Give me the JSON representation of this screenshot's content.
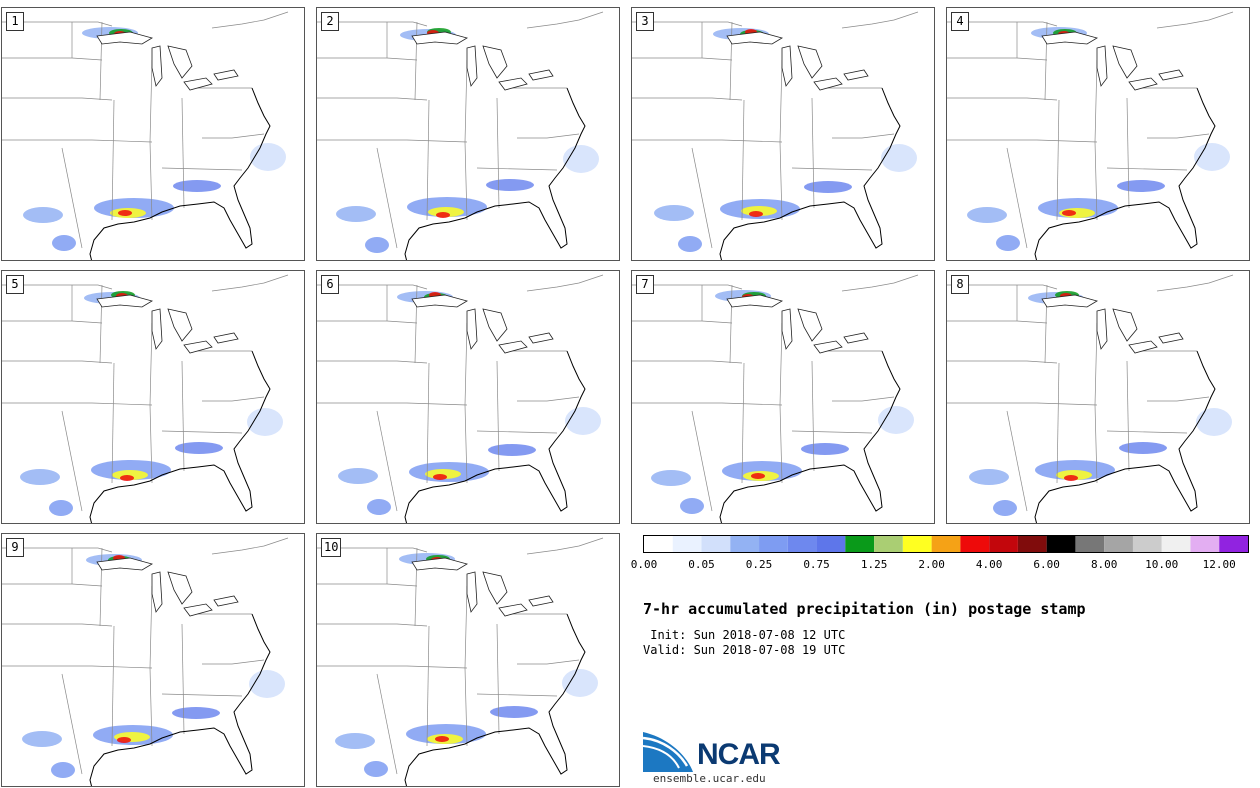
{
  "panels": [
    {
      "number": "1"
    },
    {
      "number": "2"
    },
    {
      "number": "3"
    },
    {
      "number": "4"
    },
    {
      "number": "5"
    },
    {
      "number": "6"
    },
    {
      "number": "7"
    },
    {
      "number": "8"
    },
    {
      "number": "9"
    },
    {
      "number": "10"
    }
  ],
  "title": "7-hr accumulated precipitation (in) postage stamp",
  "init": " Init: Sun 2018-07-08 12 UTC",
  "valid": "Valid: Sun 2018-07-08 19 UTC",
  "colorbar": {
    "colors": [
      "#ffffff",
      "#eaf2ff",
      "#d2e0fb",
      "#93b2f3",
      "#7e9cf2",
      "#6e88ee",
      "#5e76ea",
      "#0a9a1a",
      "#aace73",
      "#ffff21",
      "#f5a216",
      "#ee0a0a",
      "#c3060c",
      "#800c0c",
      "#000000",
      "#777777",
      "#a5a5a5",
      "#cccccc",
      "#f0f0f0",
      "#e3aef2",
      "#9123e0"
    ],
    "labels": [
      "0.00",
      "0.05",
      "0.25",
      "0.75",
      "1.25",
      "2.00",
      "4.00",
      "6.00",
      "8.00",
      "10.00",
      "12.00"
    ]
  },
  "logo": {
    "text": "NCAR",
    "site": "ensemble.ucar.edu",
    "colors": [
      "#1c78c2",
      "#0b3a72"
    ]
  }
}
